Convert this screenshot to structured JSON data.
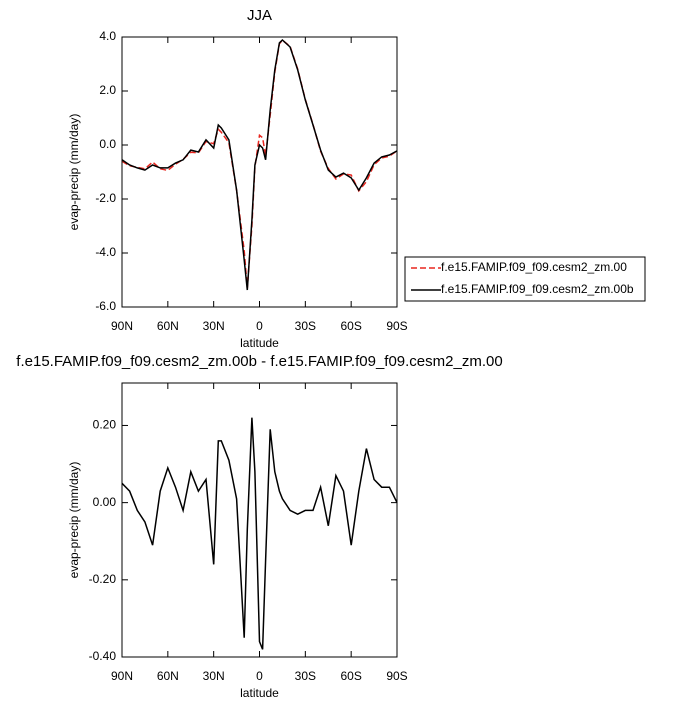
{
  "chart_data": [
    {
      "type": "line",
      "title": "JJA",
      "xlabel": "latitude",
      "ylabel": "evap-precip (mm/day)",
      "x": [
        90,
        85,
        80,
        75,
        70,
        65,
        60,
        55,
        50,
        45,
        40,
        35,
        30,
        27,
        25,
        20,
        15,
        10,
        8,
        5,
        3,
        0,
        -2,
        -4,
        -7,
        -10,
        -13,
        -15,
        -20,
        -25,
        -30,
        -35,
        -40,
        -45,
        -50,
        -55,
        -60,
        -65,
        -70,
        -75,
        -80,
        -85,
        -90
      ],
      "series": [
        {
          "name": "f.e15.FAMIP.f09_f09.cesm2_zm.00",
          "color": "#e8261f",
          "dashed": true,
          "values": [
            -0.6,
            -0.77,
            -0.83,
            -0.88,
            -0.63,
            -0.88,
            -0.94,
            -0.71,
            -0.53,
            -0.27,
            -0.29,
            0.13,
            0.05,
            0.58,
            0.47,
            0.08,
            -1.68,
            -3.91,
            -5.3,
            -3.0,
            -0.82,
            0.36,
            0.27,
            -0.4,
            1.11,
            2.7,
            3.75,
            3.88,
            3.65,
            2.81,
            1.69,
            0.76,
            -0.23,
            -0.87,
            -1.26,
            -1.07,
            -1.11,
            -1.7,
            -1.36,
            -0.73,
            -0.48,
            -0.41,
            -0.22
          ]
        },
        {
          "name": "f.e15.FAMIP.f09_f09.cesm2_zm.00b",
          "color": "#000000",
          "dashed": false,
          "values": [
            -0.55,
            -0.74,
            -0.85,
            -0.93,
            -0.74,
            -0.85,
            -0.85,
            -0.67,
            -0.55,
            -0.19,
            -0.26,
            0.19,
            -0.11,
            0.74,
            0.63,
            0.19,
            -1.67,
            -4.26,
            -5.37,
            -2.78,
            -0.74,
            0.0,
            -0.11,
            -0.55,
            1.3,
            2.78,
            3.78,
            3.89,
            3.63,
            2.78,
            1.67,
            0.74,
            -0.19,
            -0.93,
            -1.19,
            -1.04,
            -1.22,
            -1.67,
            -1.22,
            -0.67,
            -0.44,
            -0.37,
            -0.22
          ]
        }
      ],
      "xlim": [
        90,
        -90
      ],
      "xticks": [
        {
          "value": 90,
          "label": "90N"
        },
        {
          "value": 60,
          "label": "60N"
        },
        {
          "value": 30,
          "label": "30N"
        },
        0,
        {
          "value": -30,
          "label": "30S"
        },
        {
          "value": -60,
          "label": "60S"
        },
        {
          "value": -90,
          "label": "90S"
        }
      ],
      "ylim": [
        -6,
        4
      ],
      "yticks": [
        {
          "value": -6,
          "label": "-6.0"
        },
        {
          "value": -4,
          "label": "-4.0"
        },
        {
          "value": -2,
          "label": "-2.0"
        },
        {
          "value": 0,
          "label": "0.0"
        },
        {
          "value": 2,
          "label": "2.0"
        },
        {
          "value": 4,
          "label": "4.0"
        }
      ],
      "legend": "right"
    },
    {
      "type": "line",
      "title": "f.e15.FAMIP.f09_f09.cesm2_zm.00b - f.e15.FAMIP.f09_f09.cesm2_zm.00",
      "xlabel": "latitude",
      "ylabel": "evap-precip (mm/day)",
      "x": [
        90,
        85,
        80,
        75,
        70,
        65,
        60,
        55,
        50,
        45,
        40,
        35,
        30,
        27,
        25,
        20,
        15,
        10,
        8,
        5,
        3,
        0,
        -2,
        -4,
        -7,
        -10,
        -13,
        -15,
        -20,
        -25,
        -30,
        -35,
        -40,
        -45,
        -50,
        -55,
        -60,
        -65,
        -70,
        -75,
        -80,
        -85,
        -90
      ],
      "color": "#000000",
      "values": [
        0.05,
        0.03,
        -0.02,
        -0.05,
        -0.11,
        0.03,
        0.09,
        0.04,
        -0.02,
        0.08,
        0.03,
        0.06,
        -0.16,
        0.16,
        0.16,
        0.11,
        0.01,
        -0.35,
        -0.07,
        0.22,
        0.08,
        -0.36,
        -0.38,
        -0.15,
        0.19,
        0.08,
        0.03,
        0.01,
        -0.02,
        -0.03,
        -0.02,
        -0.02,
        0.04,
        -0.06,
        0.07,
        0.03,
        -0.11,
        0.03,
        0.14,
        0.06,
        0.04,
        0.04,
        0.0
      ],
      "xlim": [
        90,
        -90
      ],
      "xticks": [
        {
          "value": 90,
          "label": "90N"
        },
        {
          "value": 60,
          "label": "60N"
        },
        {
          "value": 30,
          "label": "30N"
        },
        0,
        {
          "value": -30,
          "label": "30S"
        },
        {
          "value": -60,
          "label": "60S"
        },
        {
          "value": -90,
          "label": "90S"
        }
      ],
      "ylim": [
        -0.4,
        0.31
      ],
      "yticks": [
        {
          "value": -0.4,
          "label": "-0.40"
        },
        {
          "value": -0.2,
          "label": "-0.20"
        },
        {
          "value": 0,
          "label": "0.00"
        },
        {
          "value": 0.2,
          "label": "0.20"
        }
      ]
    }
  ]
}
